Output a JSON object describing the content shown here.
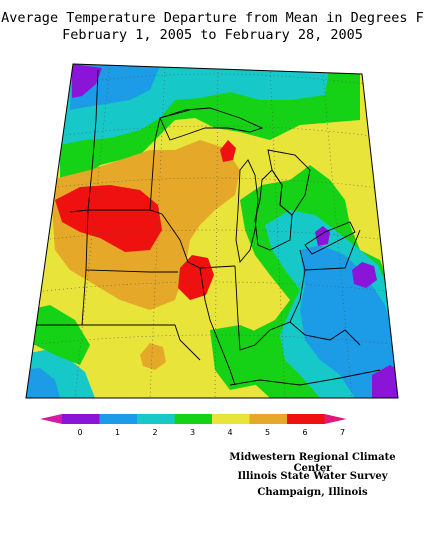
{
  "title_line1": "Average Temperature Departure from Mean in Degrees F",
  "title_line2": "February 1, 2005 to February 28, 2005",
  "legend": {
    "tick_labels": [
      "0",
      "1",
      "2",
      "3",
      "4",
      "5",
      "6",
      "7"
    ],
    "bins": [
      {
        "from": "min",
        "to": 0,
        "color": "#d01ca0"
      },
      {
        "from": 0,
        "to": 1,
        "color": "#8a14d8"
      },
      {
        "from": 1,
        "to": 2,
        "color": "#1c9be6"
      },
      {
        "from": 2,
        "to": 3,
        "color": "#16c8c8"
      },
      {
        "from": 3,
        "to": 4,
        "color": "#16d216"
      },
      {
        "from": 4,
        "to": 5,
        "color": "#e8e43a"
      },
      {
        "from": 5,
        "to": 6,
        "color": "#e6a828"
      },
      {
        "from": 6,
        "to": 7,
        "color": "#ef1010"
      },
      {
        "from": 7,
        "to": "max",
        "color": "#e01878"
      }
    ]
  },
  "credits": [
    "Midwestern Regional Climate Center",
    "Illinois State Water Survey",
    "Champaign, Illinois"
  ]
}
